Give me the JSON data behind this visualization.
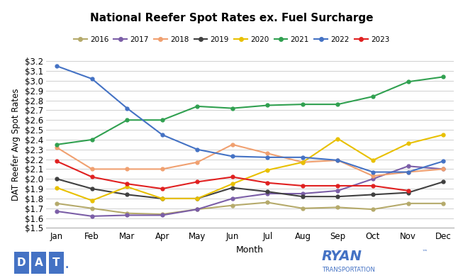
{
  "title": "National Reefer Spot Rates ex. Fuel Surcharge",
  "xlabel": "Month",
  "ylabel": "DAT Reefer Avg Spot Rates",
  "months": [
    "Jan",
    "Feb",
    "Mar",
    "Apr",
    "May",
    "Jun",
    "Jul",
    "Aug",
    "Sep",
    "Oct",
    "Nov",
    "Dec"
  ],
  "series": {
    "2016": [
      1.75,
      1.7,
      1.65,
      1.64,
      1.69,
      1.73,
      1.76,
      1.7,
      1.71,
      1.69,
      1.75,
      1.75
    ],
    "2017": [
      1.67,
      1.62,
      1.63,
      1.63,
      1.69,
      1.8,
      1.85,
      1.85,
      1.88,
      2.0,
      2.13,
      2.1
    ],
    "2018": [
      2.32,
      2.1,
      2.1,
      2.1,
      2.17,
      2.35,
      2.26,
      2.17,
      2.19,
      2.03,
      2.07,
      2.1
    ],
    "2019": [
      2.0,
      1.9,
      1.84,
      1.8,
      1.8,
      1.91,
      1.87,
      1.82,
      1.82,
      1.84,
      1.86,
      1.97
    ],
    "2020": [
      1.91,
      1.78,
      1.92,
      1.8,
      1.8,
      1.95,
      2.09,
      2.17,
      2.41,
      2.19,
      2.36,
      2.45
    ],
    "2021": [
      2.35,
      2.4,
      2.6,
      2.6,
      2.74,
      2.72,
      2.75,
      2.76,
      2.76,
      2.84,
      2.99,
      3.04
    ],
    "2022": [
      3.15,
      3.02,
      2.72,
      2.45,
      2.3,
      2.23,
      2.22,
      2.22,
      2.19,
      2.07,
      2.07,
      2.18
    ],
    "2023": [
      2.18,
      2.02,
      1.95,
      1.9,
      1.97,
      2.02,
      1.96,
      1.93,
      1.93,
      1.93,
      1.88,
      null
    ]
  },
  "colors": {
    "2016": "#b5aa6b",
    "2017": "#7b5ea7",
    "2018": "#f0a070",
    "2019": "#404040",
    "2020": "#e8c000",
    "2021": "#30a050",
    "2022": "#4472c4",
    "2023": "#e02020"
  },
  "ylim": [
    1.5,
    3.2
  ],
  "yticks": [
    1.5,
    1.6,
    1.7,
    1.8,
    1.9,
    2.0,
    2.1,
    2.2,
    2.3,
    2.4,
    2.5,
    2.6,
    2.7,
    2.8,
    2.9,
    3.0,
    3.1,
    3.2
  ],
  "background_color": "#ffffff",
  "grid_color": "#d0d0d0",
  "dat_logo_color": "#4472c4",
  "ryan_color": "#4472c4"
}
